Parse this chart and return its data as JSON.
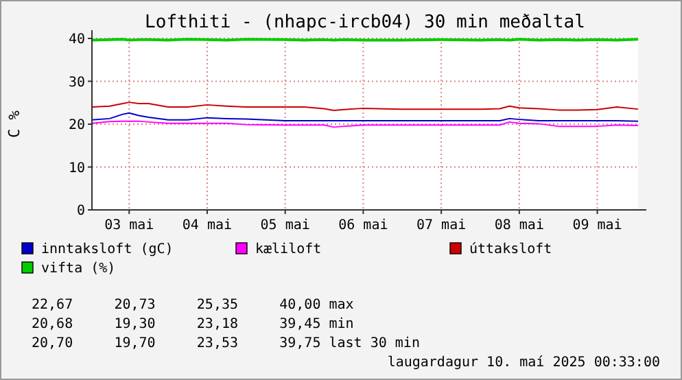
{
  "chart_data": {
    "type": "line",
    "title": "Lofthiti - (nhapc-ircb04) 30 min meðaltal",
    "ylabel": "C %",
    "x": [
      "2025-05-03T00:33",
      "2025-05-03T06:00",
      "2025-05-03T10:00",
      "2025-05-03T12:00",
      "2025-05-03T15:00",
      "2025-05-03T18:00",
      "2025-05-04T00:00",
      "2025-05-04T06:00",
      "2025-05-04T12:00",
      "2025-05-04T18:00",
      "2025-05-05T00:00",
      "2025-05-05T12:00",
      "2025-05-05T18:00",
      "2025-05-06T00:00",
      "2025-05-06T03:00",
      "2025-05-06T06:00",
      "2025-05-06T12:00",
      "2025-05-07T00:00",
      "2025-05-07T12:00",
      "2025-05-08T00:00",
      "2025-05-08T06:00",
      "2025-05-08T09:00",
      "2025-05-08T12:00",
      "2025-05-08T18:00",
      "2025-05-09T00:00",
      "2025-05-09T06:00",
      "2025-05-09T12:00",
      "2025-05-09T18:00",
      "2025-05-10T00:33"
    ],
    "series": [
      {
        "name": "inntaksloft (gC)",
        "color": "#0000cc",
        "values": [
          21,
          21.3,
          22.3,
          22.6,
          22,
          21.6,
          21,
          21,
          21.5,
          21.3,
          21.2,
          20.8,
          20.8,
          20.8,
          20.8,
          20.8,
          20.8,
          20.8,
          20.8,
          20.8,
          20.8,
          21.3,
          21.1,
          20.8,
          20.8,
          20.8,
          20.8,
          20.8,
          20.7
        ]
      },
      {
        "name": "kæliloft",
        "color": "#ff00ff",
        "values": [
          20.2,
          20.6,
          20.7,
          20.7,
          20.7,
          20.5,
          20.2,
          20.2,
          20.2,
          20.2,
          19.9,
          19.8,
          19.8,
          19.8,
          19.3,
          19.5,
          19.8,
          19.8,
          19.8,
          19.8,
          19.8,
          20.5,
          20.2,
          20.1,
          19.5,
          19.5,
          19.5,
          19.8,
          19.7
        ]
      },
      {
        "name": "úttaksloft",
        "color": "#cc0000",
        "values": [
          24,
          24.2,
          24.8,
          25.1,
          24.8,
          24.8,
          24,
          24,
          24.5,
          24.2,
          24,
          24,
          24,
          23.6,
          23.2,
          23.4,
          23.7,
          23.5,
          23.5,
          23.5,
          23.6,
          24.2,
          23.8,
          23.6,
          23.3,
          23.3,
          23.4,
          24,
          23.5
        ]
      },
      {
        "name": "vifta (%)",
        "color": "#00cc00",
        "values": [
          39.6,
          39.7,
          39.8,
          39.6,
          39.7,
          39.7,
          39.6,
          39.8,
          39.7,
          39.6,
          39.8,
          39.7,
          39.6,
          39.7,
          39.6,
          39.7,
          39.6,
          39.6,
          39.7,
          39.6,
          39.7,
          39.6,
          39.8,
          39.6,
          39.7,
          39.6,
          39.7,
          39.6,
          39.8
        ]
      }
    ],
    "xlim": [
      "2025-05-03T00:33",
      "2025-05-10T00:33"
    ],
    "xticks": [
      {
        "value": "2025-05-03T12:00",
        "label": "03 mai"
      },
      {
        "value": "2025-05-04T12:00",
        "label": "04 mai"
      },
      {
        "value": "2025-05-05T12:00",
        "label": "05 mai"
      },
      {
        "value": "2025-05-06T12:00",
        "label": "06 mai"
      },
      {
        "value": "2025-05-07T12:00",
        "label": "07 mai"
      },
      {
        "value": "2025-05-08T12:00",
        "label": "08 mai"
      },
      {
        "value": "2025-05-09T12:00",
        "label": "09 mai"
      }
    ],
    "ylim": [
      0,
      40
    ],
    "yticks": [
      0,
      10,
      20,
      30,
      40
    ],
    "grid": true,
    "legend": "bottom",
    "line_style": "solid",
    "annotations": [
      "22,67     20,73     25,35     40,00 max",
      "20,68     19,30     23,18     39,45 min",
      "20,70     19,70     23,53     39,75 last 30 min",
      "laugardagur 10. maí 2025 00:33:00"
    ]
  }
}
